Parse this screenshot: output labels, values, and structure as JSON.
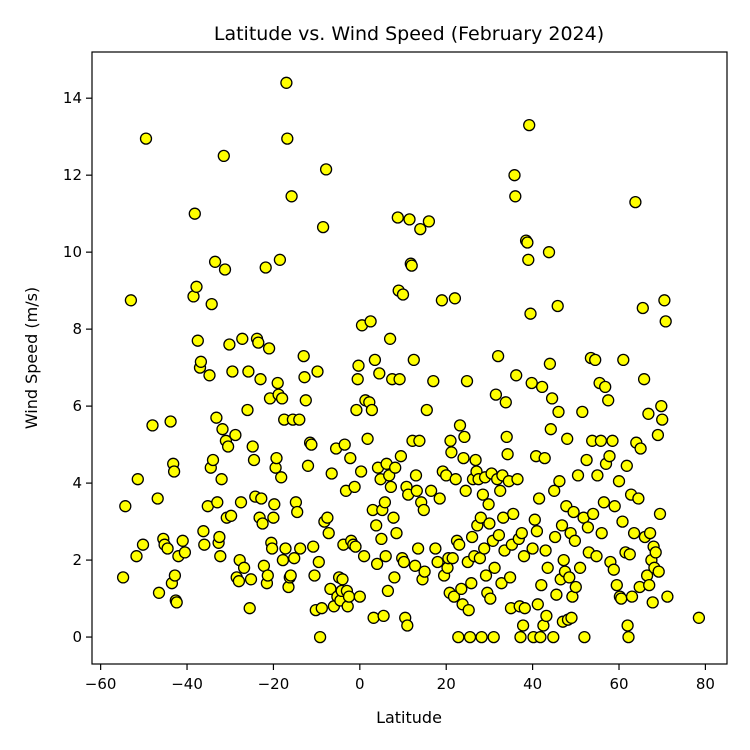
{
  "chart_data": {
    "type": "scatter",
    "title": "Latitude vs. Wind Speed (February 2024)",
    "xlabel": "Latitude",
    "ylabel": "Wind Speed (m/s)",
    "xlim": [
      -62,
      85
    ],
    "ylim": [
      -0.7,
      15.2
    ],
    "xticks": [
      -60,
      -40,
      -20,
      0,
      20,
      40,
      60,
      80
    ],
    "yticks": [
      0,
      2,
      4,
      6,
      8,
      10,
      12,
      14
    ],
    "grid": false,
    "marker_fill": "#ffff00",
    "marker_edge": "#000000",
    "points": [
      [
        -54.8,
        1.55
      ],
      [
        -54.3,
        3.4
      ],
      [
        -53,
        8.75
      ],
      [
        -51.7,
        2.1
      ],
      [
        -51.4,
        4.1
      ],
      [
        -50.2,
        2.4
      ],
      [
        -49.5,
        12.95
      ],
      [
        -48,
        5.5
      ],
      [
        -46.8,
        3.6
      ],
      [
        -46.5,
        1.15
      ],
      [
        -45.5,
        2.55
      ],
      [
        -45.2,
        2.4
      ],
      [
        -44.5,
        2.3
      ],
      [
        -43.8,
        5.6
      ],
      [
        -43.5,
        1.4
      ],
      [
        -43.2,
        4.5
      ],
      [
        -43,
        4.3
      ],
      [
        -42.8,
        1.6
      ],
      [
        -42.6,
        0.95
      ],
      [
        -42.4,
        0.9
      ],
      [
        -42,
        2.1
      ],
      [
        -41,
        2.5
      ],
      [
        -40.5,
        2.2
      ],
      [
        -38.5,
        8.85
      ],
      [
        -38.2,
        11
      ],
      [
        -37.8,
        9.1
      ],
      [
        -37.5,
        7.7
      ],
      [
        -37,
        7
      ],
      [
        -36.8,
        7.15
      ],
      [
        -36.2,
        2.75
      ],
      [
        -36,
        2.4
      ],
      [
        -35.2,
        3.4
      ],
      [
        -34.8,
        6.8
      ],
      [
        -34.5,
        4.4
      ],
      [
        -34.3,
        8.65
      ],
      [
        -34,
        4.6
      ],
      [
        -33.5,
        9.75
      ],
      [
        -33.2,
        5.7
      ],
      [
        -33,
        3.5
      ],
      [
        -32.7,
        2.45
      ],
      [
        -32.5,
        2.6
      ],
      [
        -32.3,
        2.1
      ],
      [
        -32,
        4.1
      ],
      [
        -31.8,
        5.4
      ],
      [
        -31.5,
        12.5
      ],
      [
        -31.2,
        9.55
      ],
      [
        -31,
        5.1
      ],
      [
        -30.8,
        3.1
      ],
      [
        -30.5,
        4.95
      ],
      [
        -30.2,
        7.6
      ],
      [
        -29.8,
        3.15
      ],
      [
        -29.5,
        6.9
      ],
      [
        -28.8,
        5.25
      ],
      [
        -28.5,
        1.55
      ],
      [
        -28,
        1.45
      ],
      [
        -27.8,
        2
      ],
      [
        -27.5,
        3.5
      ],
      [
        -27.2,
        7.75
      ],
      [
        -26.8,
        1.8
      ],
      [
        -26,
        5.9
      ],
      [
        -25.8,
        6.9
      ],
      [
        -25.5,
        0.75
      ],
      [
        -25.2,
        1.5
      ],
      [
        -24.8,
        4.95
      ],
      [
        -24.5,
        4.6
      ],
      [
        -24.2,
        3.65
      ],
      [
        -23.8,
        7.75
      ],
      [
        -23.5,
        7.65
      ],
      [
        -23.2,
        3.1
      ],
      [
        -23,
        6.7
      ],
      [
        -22.8,
        3.6
      ],
      [
        -22.5,
        2.95
      ],
      [
        -22.2,
        1.85
      ],
      [
        -21.8,
        9.6
      ],
      [
        -21.5,
        1.4
      ],
      [
        -21.3,
        1.6
      ],
      [
        -21,
        7.5
      ],
      [
        -20.8,
        6.2
      ],
      [
        -20.5,
        2.45
      ],
      [
        -20.3,
        2.3
      ],
      [
        -20,
        3.1
      ],
      [
        -19.8,
        3.45
      ],
      [
        -19.5,
        4.4
      ],
      [
        -19.3,
        4.65
      ],
      [
        -19,
        6.6
      ],
      [
        -18.8,
        6.3
      ],
      [
        -18.5,
        9.8
      ],
      [
        -18.2,
        4.15
      ],
      [
        -18,
        6.2
      ],
      [
        -17.8,
        2
      ],
      [
        -17.5,
        5.65
      ],
      [
        -17.2,
        2.3
      ],
      [
        -17,
        14.4
      ],
      [
        -16.8,
        12.95
      ],
      [
        -16.5,
        1.3
      ],
      [
        -16.2,
        1.55
      ],
      [
        -16,
        1.6
      ],
      [
        -15.8,
        11.45
      ],
      [
        -15.5,
        5.65
      ],
      [
        -15.2,
        2.05
      ],
      [
        -14.8,
        3.5
      ],
      [
        -14.5,
        3.25
      ],
      [
        -14,
        5.65
      ],
      [
        -13.8,
        2.3
      ],
      [
        -13,
        7.3
      ],
      [
        -12.8,
        6.75
      ],
      [
        -12.5,
        6.15
      ],
      [
        -12,
        4.45
      ],
      [
        -11.5,
        5.05
      ],
      [
        -11.2,
        5
      ],
      [
        -10.8,
        2.35
      ],
      [
        -10.5,
        1.6
      ],
      [
        -10.2,
        0.7
      ],
      [
        -9.8,
        6.9
      ],
      [
        -9.5,
        1.95
      ],
      [
        -9.2,
        0
      ],
      [
        -8.8,
        0.75
      ],
      [
        -8.5,
        10.65
      ],
      [
        -8.2,
        3
      ],
      [
        -7.8,
        12.15
      ],
      [
        -7.5,
        3.1
      ],
      [
        -7.2,
        2.7
      ],
      [
        -6.8,
        1.25
      ],
      [
        -6.5,
        4.25
      ],
      [
        -6,
        0.8
      ],
      [
        -5.5,
        4.9
      ],
      [
        -5.2,
        1.05
      ],
      [
        -4.8,
        1.55
      ],
      [
        -4.5,
        0.95
      ],
      [
        -4.2,
        1.2
      ],
      [
        -4,
        1.5
      ],
      [
        -3.8,
        2.4
      ],
      [
        -3.5,
        5
      ],
      [
        -3.2,
        3.8
      ],
      [
        -3,
        1.2
      ],
      [
        -2.8,
        0.8
      ],
      [
        -2.5,
        1.05
      ],
      [
        -2.2,
        4.65
      ],
      [
        -2,
        2.5
      ],
      [
        -1.5,
        2.4
      ],
      [
        -1.2,
        3.9
      ],
      [
        -1,
        2.35
      ],
      [
        -0.8,
        5.9
      ],
      [
        -0.5,
        6.7
      ],
      [
        -0.3,
        7.05
      ],
      [
        0,
        1.05
      ],
      [
        0.3,
        4.3
      ],
      [
        0.5,
        8.1
      ],
      [
        1,
        2.1
      ],
      [
        1.3,
        6.15
      ],
      [
        1.8,
        5.15
      ],
      [
        2.2,
        6.1
      ],
      [
        2.5,
        8.2
      ],
      [
        2.8,
        5.9
      ],
      [
        3,
        3.3
      ],
      [
        3.2,
        0.5
      ],
      [
        3.5,
        7.2
      ],
      [
        3.8,
        2.9
      ],
      [
        4,
        1.9
      ],
      [
        4.2,
        4.4
      ],
      [
        4.5,
        6.85
      ],
      [
        4.8,
        4.1
      ],
      [
        5,
        2.55
      ],
      [
        5.2,
        3.3
      ],
      [
        5.5,
        0.55
      ],
      [
        5.8,
        3.5
      ],
      [
        6,
        2.1
      ],
      [
        6.2,
        4.5
      ],
      [
        6.5,
        1.2
      ],
      [
        6.8,
        4.2
      ],
      [
        7,
        7.75
      ],
      [
        7.2,
        3.9
      ],
      [
        7.5,
        6.7
      ],
      [
        7.8,
        3.1
      ],
      [
        8,
        1.55
      ],
      [
        8.2,
        4.4
      ],
      [
        8.5,
        2.7
      ],
      [
        8.8,
        10.9
      ],
      [
        9,
        9
      ],
      [
        9.2,
        6.7
      ],
      [
        9.5,
        4.7
      ],
      [
        9.8,
        2.05
      ],
      [
        10,
        8.9
      ],
      [
        10.2,
        1.95
      ],
      [
        10.5,
        0.5
      ],
      [
        10.8,
        3.9
      ],
      [
        11,
        0.3
      ],
      [
        11.2,
        3.7
      ],
      [
        11.5,
        10.85
      ],
      [
        11.8,
        9.7
      ],
      [
        12,
        9.65
      ],
      [
        12.2,
        5.1
      ],
      [
        12.5,
        7.2
      ],
      [
        12.8,
        1.85
      ],
      [
        13,
        4.2
      ],
      [
        13.2,
        3.8
      ],
      [
        13.5,
        2.3
      ],
      [
        13.8,
        5.1
      ],
      [
        14,
        10.6
      ],
      [
        14.2,
        3.5
      ],
      [
        14.5,
        1.5
      ],
      [
        14.8,
        3.3
      ],
      [
        15,
        1.7
      ],
      [
        15.5,
        5.9
      ],
      [
        16,
        10.8
      ],
      [
        16.5,
        3.8
      ],
      [
        17,
        6.65
      ],
      [
        17.5,
        2.3
      ],
      [
        18,
        1.95
      ],
      [
        18.5,
        3.6
      ],
      [
        19,
        8.75
      ],
      [
        19.2,
        4.3
      ],
      [
        19.5,
        1.6
      ],
      [
        20,
        4.2
      ],
      [
        20.3,
        1.8
      ],
      [
        20.5,
        2.05
      ],
      [
        20.8,
        1.15
      ],
      [
        21,
        5.1
      ],
      [
        21.2,
        4.8
      ],
      [
        21.5,
        2.05
      ],
      [
        21.8,
        1.05
      ],
      [
        22,
        8.8
      ],
      [
        22.2,
        4.1
      ],
      [
        22.5,
        2.5
      ],
      [
        22.8,
        0
      ],
      [
        23,
        2.4
      ],
      [
        23.2,
        5.5
      ],
      [
        23.5,
        1.25
      ],
      [
        23.8,
        0.85
      ],
      [
        24,
        4.65
      ],
      [
        24.2,
        5.2
      ],
      [
        24.5,
        3.8
      ],
      [
        24.8,
        6.65
      ],
      [
        25,
        1.95
      ],
      [
        25.2,
        0.7
      ],
      [
        25.5,
        0
      ],
      [
        25.8,
        1.4
      ],
      [
        26,
        2.6
      ],
      [
        26.2,
        4.1
      ],
      [
        26.5,
        2.1
      ],
      [
        26.8,
        4.6
      ],
      [
        27,
        4.3
      ],
      [
        27.2,
        2.9
      ],
      [
        27.5,
        4.1
      ],
      [
        27.8,
        2.05
      ],
      [
        28,
        3.1
      ],
      [
        28.2,
        0
      ],
      [
        28.5,
        3.7
      ],
      [
        28.8,
        2.3
      ],
      [
        29,
        4.15
      ],
      [
        29.2,
        1.6
      ],
      [
        29.5,
        1.15
      ],
      [
        29.8,
        3.45
      ],
      [
        30,
        2.95
      ],
      [
        30.2,
        1
      ],
      [
        30.5,
        4.25
      ],
      [
        30.8,
        2.5
      ],
      [
        31,
        0
      ],
      [
        31.2,
        1.8
      ],
      [
        31.5,
        6.3
      ],
      [
        31.8,
        4.1
      ],
      [
        32,
        7.3
      ],
      [
        32.2,
        2.65
      ],
      [
        32.5,
        3.8
      ],
      [
        32.8,
        1.4
      ],
      [
        33,
        4.2
      ],
      [
        33.2,
        3.1
      ],
      [
        33.5,
        2.25
      ],
      [
        33.8,
        6.1
      ],
      [
        34,
        5.2
      ],
      [
        34.2,
        4.75
      ],
      [
        34.5,
        4.05
      ],
      [
        34.8,
        1.55
      ],
      [
        35,
        0.75
      ],
      [
        35.2,
        2.4
      ],
      [
        35.5,
        3.2
      ],
      [
        35.8,
        12
      ],
      [
        36,
        11.45
      ],
      [
        36.2,
        6.8
      ],
      [
        36.5,
        4.1
      ],
      [
        36.8,
        2.55
      ],
      [
        37,
        0.8
      ],
      [
        37.2,
        0
      ],
      [
        37.5,
        2.7
      ],
      [
        37.8,
        0.3
      ],
      [
        38,
        2.1
      ],
      [
        38.2,
        0.75
      ],
      [
        38.5,
        10.3
      ],
      [
        38.8,
        10.25
      ],
      [
        39,
        9.8
      ],
      [
        39.2,
        13.3
      ],
      [
        39.5,
        8.4
      ],
      [
        39.8,
        6.6
      ],
      [
        40,
        2.3
      ],
      [
        40.2,
        0
      ],
      [
        40.5,
        3.05
      ],
      [
        40.8,
        4.7
      ],
      [
        41,
        2.75
      ],
      [
        41.2,
        0.85
      ],
      [
        41.5,
        3.6
      ],
      [
        41.8,
        0
      ],
      [
        42,
        1.35
      ],
      [
        42.2,
        6.5
      ],
      [
        42.5,
        0.3
      ],
      [
        42.8,
        4.65
      ],
      [
        43,
        2.25
      ],
      [
        43.2,
        0.55
      ],
      [
        43.5,
        1.8
      ],
      [
        43.8,
        10
      ],
      [
        44,
        7.1
      ],
      [
        44.2,
        5.4
      ],
      [
        44.5,
        6.2
      ],
      [
        44.8,
        0
      ],
      [
        45,
        3.8
      ],
      [
        45.2,
        2.6
      ],
      [
        45.5,
        1.1
      ],
      [
        45.8,
        8.6
      ],
      [
        46,
        5.85
      ],
      [
        46.2,
        4.05
      ],
      [
        46.5,
        1.5
      ],
      [
        46.8,
        2.9
      ],
      [
        47,
        0.4
      ],
      [
        47.2,
        2
      ],
      [
        47.5,
        1.7
      ],
      [
        47.8,
        3.4
      ],
      [
        48,
        5.15
      ],
      [
        48.2,
        0.45
      ],
      [
        48.5,
        1.55
      ],
      [
        48.8,
        2.7
      ],
      [
        49,
        0.5
      ],
      [
        49.2,
        1.05
      ],
      [
        49.5,
        3.25
      ],
      [
        49.8,
        2.5
      ],
      [
        50,
        1.3
      ],
      [
        50.5,
        4.2
      ],
      [
        51,
        1.8
      ],
      [
        51.5,
        5.85
      ],
      [
        51.8,
        3.1
      ],
      [
        52,
        0
      ],
      [
        52.5,
        4.6
      ],
      [
        52.8,
        2.85
      ],
      [
        53,
        2.2
      ],
      [
        53.5,
        7.25
      ],
      [
        53.8,
        5.1
      ],
      [
        54,
        3.2
      ],
      [
        54.5,
        7.2
      ],
      [
        54.8,
        2.1
      ],
      [
        55,
        4.2
      ],
      [
        55.5,
        6.6
      ],
      [
        55.8,
        5.1
      ],
      [
        56,
        2.7
      ],
      [
        56.5,
        3.5
      ],
      [
        56.8,
        6.5
      ],
      [
        57,
        4.5
      ],
      [
        57.5,
        6.15
      ],
      [
        57.8,
        4.7
      ],
      [
        58,
        1.95
      ],
      [
        58.5,
        5.1
      ],
      [
        58.8,
        1.75
      ],
      [
        59,
        3.4
      ],
      [
        59.5,
        1.35
      ],
      [
        60,
        4.05
      ],
      [
        60.2,
        1.05
      ],
      [
        60.5,
        1
      ],
      [
        60.8,
        3
      ],
      [
        61,
        7.2
      ],
      [
        61.5,
        2.2
      ],
      [
        61.8,
        4.45
      ],
      [
        62,
        0.3
      ],
      [
        62.2,
        0
      ],
      [
        62.5,
        2.15
      ],
      [
        62.8,
        3.7
      ],
      [
        63,
        1.05
      ],
      [
        63.5,
        2.7
      ],
      [
        63.8,
        11.3
      ],
      [
        64,
        5.05
      ],
      [
        64.5,
        3.6
      ],
      [
        64.8,
        1.3
      ],
      [
        65,
        4.9
      ],
      [
        65.5,
        8.55
      ],
      [
        65.8,
        6.7
      ],
      [
        66,
        2.6
      ],
      [
        66.5,
        1.6
      ],
      [
        66.8,
        5.8
      ],
      [
        67,
        1.35
      ],
      [
        67.2,
        2.7
      ],
      [
        67.5,
        2
      ],
      [
        67.8,
        0.9
      ],
      [
        68,
        2.35
      ],
      [
        68.2,
        1.8
      ],
      [
        68.5,
        2.2
      ],
      [
        69,
        5.25
      ],
      [
        69.2,
        1.7
      ],
      [
        69.5,
        3.2
      ],
      [
        69.8,
        6
      ],
      [
        70,
        5.65
      ],
      [
        70.5,
        8.75
      ],
      [
        70.8,
        8.2
      ],
      [
        71.2,
        1.05
      ],
      [
        78.5,
        0.5
      ]
    ]
  }
}
